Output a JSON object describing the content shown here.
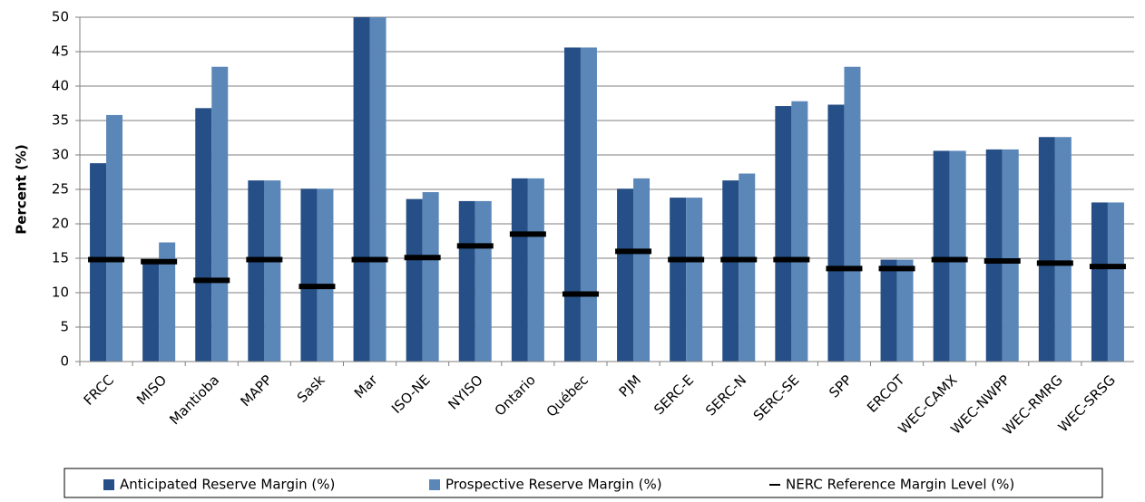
{
  "chart_data": {
    "type": "bar",
    "y_label": "Percent (%)",
    "categories": [
      "FRCC",
      "MISO",
      "Mantioba",
      "MAPP",
      "Sask",
      "Mar",
      "ISO-NE",
      "NYISO",
      "Ontario",
      "Québec",
      "PJM",
      "SERC-E",
      "SERC-N",
      "SERC-SE",
      "SPP",
      "ERCOT",
      "WEC-CAMX",
      "WEC-NWPP",
      "WEC-RMRG",
      "WEC-SRSG"
    ],
    "series": [
      {
        "name": "Anticipated Reserve Margin (%)",
        "color": "#254f86",
        "style": "bar",
        "values": [
          28.8,
          14.5,
          36.8,
          26.3,
          25.1,
          50,
          23.6,
          23.3,
          26.6,
          45.6,
          25.1,
          23.8,
          26.3,
          37.1,
          37.3,
          14.8,
          30.6,
          30.8,
          32.6,
          23.1
        ]
      },
      {
        "name": "Prospective Reserve Margin (%)",
        "color": "#5b87b8",
        "style": "bar",
        "values": [
          35.8,
          17.3,
          42.8,
          26.3,
          25.1,
          50,
          24.6,
          23.3,
          26.6,
          45.6,
          26.6,
          23.8,
          27.3,
          37.8,
          42.8,
          14.8,
          30.6,
          30.8,
          32.6,
          23.1
        ]
      },
      {
        "name": "NERC Reference Margin Level (%)",
        "color": "#000000",
        "style": "marker",
        "values": [
          14.8,
          14.5,
          11.8,
          14.8,
          10.9,
          14.8,
          15.1,
          16.8,
          18.5,
          9.8,
          16.0,
          14.8,
          14.8,
          14.8,
          13.5,
          13.5,
          14.8,
          14.6,
          14.3,
          13.8
        ]
      }
    ],
    "ylim": [
      0,
      50
    ],
    "yticks": [
      0,
      5,
      10,
      15,
      20,
      25,
      30,
      35,
      40,
      45,
      50
    ],
    "grid": true,
    "legend": "bottom"
  }
}
